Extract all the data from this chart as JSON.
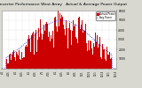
{
  "title": "Solar PV/Inverter Performance West Array   Actual & Average Power Output",
  "title_fontsize": 3.2,
  "bg_color": "#d8d8d0",
  "plot_bg": "#ffffff",
  "bar_color": "#cc0000",
  "avg_line_color": "#0000ff",
  "grid_color": "#aaaaaa",
  "legend_entries": [
    "Actual Power",
    "Avg Power"
  ],
  "legend_colors": [
    "#cc0000",
    "#0000ff"
  ],
  "y_max": 6000,
  "y_min": 0,
  "y_ticks": [
    1000,
    2000,
    3000,
    4000,
    5000,
    6000
  ],
  "x_labels": [
    "4/1",
    "4/15",
    "5/1",
    "5/15",
    "6/1",
    "6/15",
    "7/1",
    "7/15",
    "8/1",
    "8/15",
    "9/1",
    "9/15",
    "10/1",
    "10/15",
    "11/1",
    "11/15",
    "12/1",
    "12/15"
  ],
  "n_points": 144,
  "seed": 42
}
